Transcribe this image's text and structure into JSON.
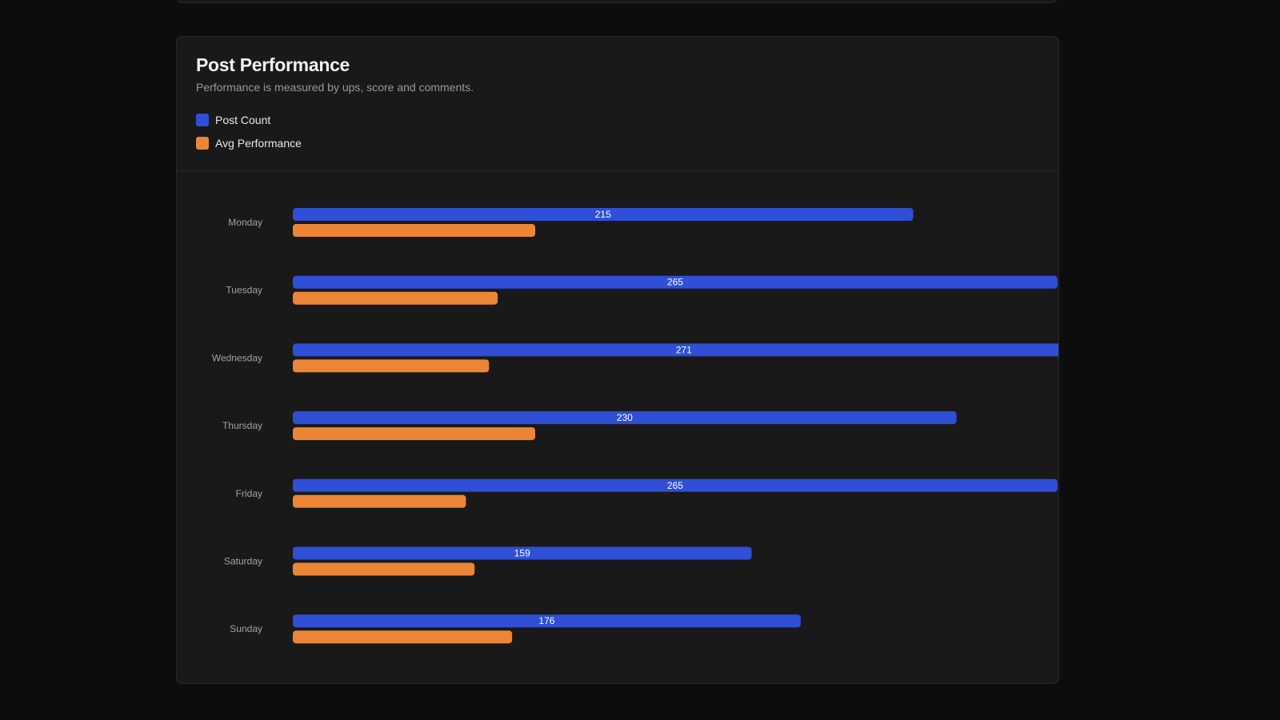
{
  "card": {
    "title": "Post Performance",
    "subtitle": "Performance is measured by ups, score and comments."
  },
  "legend": [
    {
      "label": "Post Count",
      "color": "#2f4fd6"
    },
    {
      "label": "Avg Performance",
      "color": "#ec8535"
    }
  ],
  "chart_data": {
    "type": "bar",
    "orientation": "horizontal",
    "title": "Post Performance",
    "subtitle": "Performance is measured by ups, score and comments.",
    "categories": [
      "Monday",
      "Tuesday",
      "Wednesday",
      "Thursday",
      "Friday",
      "Saturday",
      "Sunday"
    ],
    "series": [
      {
        "name": "Post Count",
        "color": "#2f4fd6",
        "values": [
          215,
          265,
          271,
          230,
          265,
          159,
          176
        ],
        "show_labels": true
      },
      {
        "name": "Avg Performance",
        "color": "#ec8535",
        "values": [
          84,
          71,
          68,
          84,
          60,
          63,
          76
        ],
        "show_labels": false
      }
    ],
    "xlim": [
      0,
      280
    ],
    "grid": false,
    "legend_position": "top-left"
  }
}
